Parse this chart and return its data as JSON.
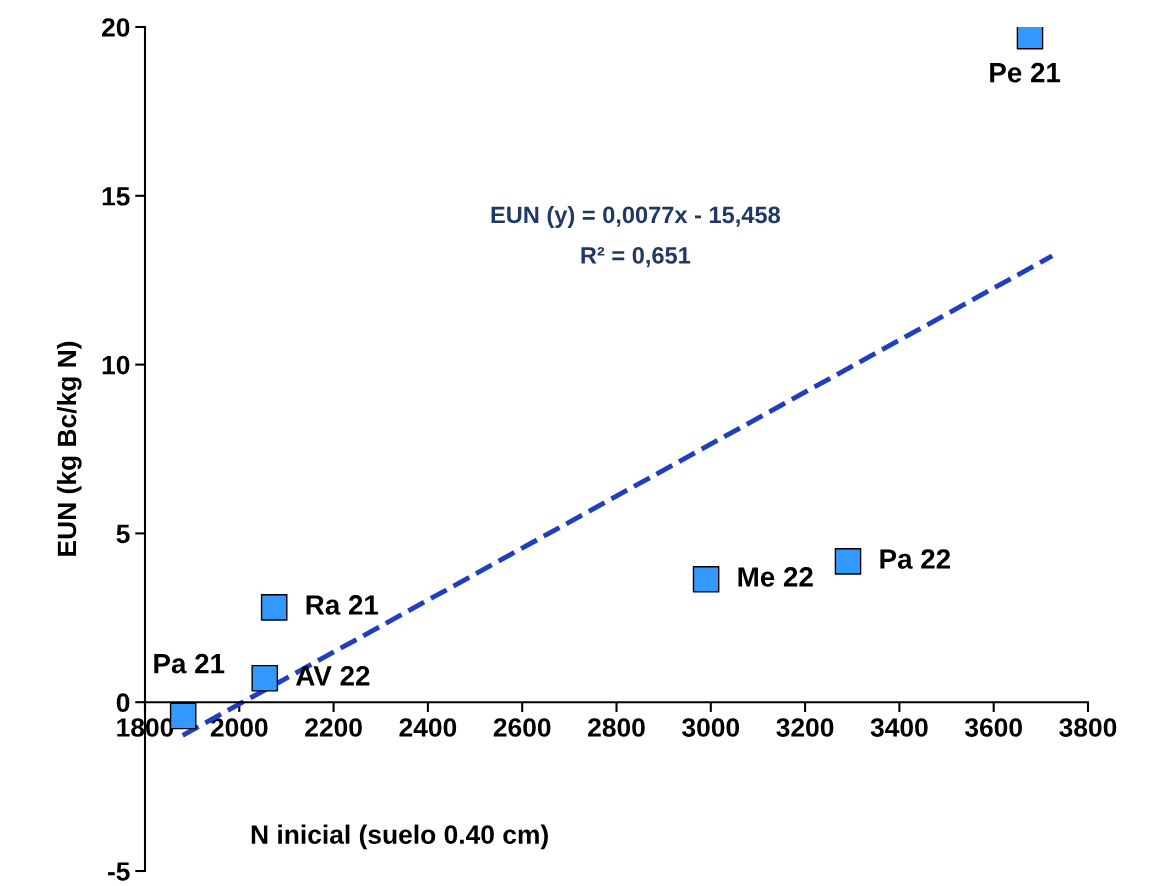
{
  "chart_data": {
    "type": "scatter",
    "xlabel": "N inicial (suelo 0.40 cm)",
    "ylabel": "EUN (kg Bc/kg N)",
    "xlim": [
      1800,
      3800
    ],
    "xticks": [
      1800,
      2000,
      2200,
      2400,
      2600,
      2800,
      3000,
      3200,
      3400,
      3600,
      3800
    ],
    "ylim": [
      -5,
      20
    ],
    "yticks": [
      -5,
      0,
      5,
      10,
      15,
      20
    ],
    "grid": false,
    "legend": false,
    "series": [
      {
        "marker": "square",
        "color": "#3399ff",
        "x": [
          3677,
          3291,
          2990,
          2074,
          2054,
          1881
        ],
        "values": [
          19.73,
          4.17,
          3.64,
          2.81,
          0.71,
          -0.41
        ]
      },
      {
        "type": "line",
        "color": "#1f3fbf",
        "line_style": "dashed",
        "x": [
          1880,
          3724
        ],
        "values": [
          -0.98,
          13.22
        ]
      }
    ],
    "annotations": [
      {
        "text": "Pe 21",
        "x": 3677,
        "y": 19.73
      },
      {
        "text": "Pa 22",
        "x": 3291,
        "y": 4.17
      },
      {
        "text": "Me 22",
        "x": 2990,
        "y": 3.64
      },
      {
        "text": "Ra 21",
        "x": 2074,
        "y": 2.81
      },
      {
        "text": "AV 22",
        "x": 2054,
        "y": 0.71
      },
      {
        "text": "Pa 21",
        "x": 1881,
        "y": -0.41
      },
      "EUN (y) = 0,0077x - 15,458",
      "R² = 0,651"
    ]
  }
}
